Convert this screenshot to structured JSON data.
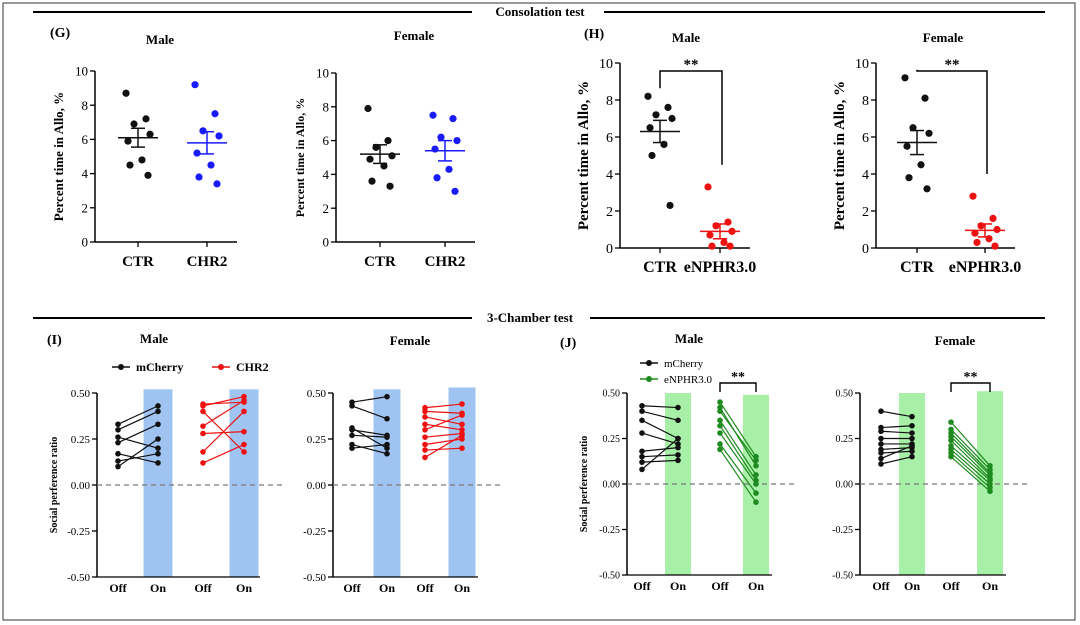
{
  "sections": {
    "consolation": "Consolation test",
    "three_chamber": "3-Chamber test"
  },
  "colors": {
    "black": "#111111",
    "blue": "#1a1aff",
    "red": "#ee1111",
    "green": "#1f8a1f",
    "light_blue": "#a0c4f2",
    "light_green": "#a8f0a8"
  },
  "chart_data": [
    {
      "id": "G-male",
      "panel_letter": "(G)",
      "type": "scatter",
      "title": "Male",
      "ylabel": "Percent time in Allo, %",
      "ylim": [
        0,
        10
      ],
      "yticks": [
        "0",
        "2",
        "4",
        "6",
        "8",
        "10"
      ],
      "categories": [
        "CTR",
        "CHR2"
      ],
      "groups": [
        {
          "category": "CTR",
          "color": "#111111",
          "mean": 6.1,
          "sem": 0.55,
          "points": [
            8.7,
            7.2,
            6.9,
            6.3,
            5.9,
            4.8,
            4.5,
            3.9
          ]
        },
        {
          "category": "CHR2",
          "color": "#1a1aff",
          "mean": 5.8,
          "sem": 0.65,
          "points": [
            9.2,
            7.5,
            6.5,
            6.2,
            5.2,
            4.5,
            3.8,
            3.4
          ]
        }
      ]
    },
    {
      "id": "G-female",
      "type": "scatter",
      "title": "Female",
      "ylabel": "Percent time in Allo, %",
      "ylim": [
        0,
        10
      ],
      "yticks": [
        "0",
        "2",
        "4",
        "6",
        "8",
        "10"
      ],
      "categories": [
        "CTR",
        "CHR2"
      ],
      "groups": [
        {
          "category": "CTR",
          "color": "#111111",
          "mean": 5.2,
          "sem": 0.55,
          "points": [
            7.9,
            6.0,
            5.6,
            5.1,
            4.9,
            4.5,
            3.6,
            3.3
          ]
        },
        {
          "category": "CHR2",
          "color": "#1a1aff",
          "mean": 5.4,
          "sem": 0.6,
          "points": [
            7.5,
            7.3,
            6.2,
            6.0,
            5.5,
            4.3,
            3.8,
            3.0
          ]
        }
      ]
    },
    {
      "id": "H-male",
      "panel_letter": "(H)",
      "type": "scatter",
      "title": "Male",
      "significance": "**",
      "ylabel": "Percent time in Allo, %",
      "ylim": [
        0,
        10
      ],
      "yticks": [
        "0",
        "2",
        "4",
        "6",
        "8",
        "10"
      ],
      "categories": [
        "CTR",
        "eNPHR3.0"
      ],
      "groups": [
        {
          "category": "CTR",
          "color": "#111111",
          "mean": 6.3,
          "sem": 0.6,
          "points": [
            8.2,
            7.6,
            7.2,
            7.0,
            6.5,
            5.6,
            5.0,
            2.3
          ]
        },
        {
          "category": "eNPHR3.0",
          "color": "#ee1111",
          "mean": 0.9,
          "sem": 0.4,
          "points": [
            3.3,
            1.4,
            1.2,
            0.9,
            0.7,
            0.3,
            0.1,
            0.1
          ]
        }
      ]
    },
    {
      "id": "H-female",
      "type": "scatter",
      "title": "Female",
      "significance": "**",
      "ylabel": "Percent time in Allo, %",
      "ylim": [
        0,
        10
      ],
      "yticks": [
        "0",
        "2",
        "4",
        "6",
        "8",
        "10"
      ],
      "categories": [
        "CTR",
        "eNPHR3.0"
      ],
      "groups": [
        {
          "category": "CTR",
          "color": "#111111",
          "mean": 5.7,
          "sem": 0.65,
          "points": [
            9.2,
            8.1,
            6.5,
            6.2,
            5.5,
            4.5,
            3.8,
            3.2
          ]
        },
        {
          "category": "eNPHR3.0",
          "color": "#ee1111",
          "mean": 0.95,
          "sem": 0.35,
          "points": [
            2.8,
            1.6,
            1.2,
            1.0,
            0.8,
            0.5,
            0.3,
            0.1
          ]
        }
      ]
    },
    {
      "id": "I-male",
      "panel_letter": "(I)",
      "type": "line",
      "title": "Male",
      "ylabel": "Social perference ratio",
      "ylim": [
        -0.5,
        0.5
      ],
      "yticks": [
        "-0.50",
        "-0.25",
        "0.00",
        "0.25",
        "0.50"
      ],
      "xticks": [
        "Off",
        "On",
        "Off",
        "On"
      ],
      "legend": [
        {
          "name": "mCherry",
          "color": "#111111"
        },
        {
          "name": "CHR2",
          "color": "#ee1111"
        }
      ],
      "bars": [
        {
          "slot": 1,
          "value": 0.52,
          "color": "#a0c4f2"
        },
        {
          "slot": 3,
          "value": 0.52,
          "color": "#a0c4f2"
        }
      ],
      "series": [
        {
          "name": "mCherry",
          "color": "#111111",
          "slots": [
            0,
            1
          ],
          "pairs": [
            [
              0.33,
              0.43
            ],
            [
              0.3,
              0.4
            ],
            [
              0.26,
              0.2
            ],
            [
              0.23,
              0.33
            ],
            [
              0.17,
              0.12
            ],
            [
              0.13,
              0.17
            ],
            [
              0.1,
              0.25
            ]
          ]
        },
        {
          "name": "CHR2",
          "color": "#ee1111",
          "slots": [
            2,
            3
          ],
          "pairs": [
            [
              0.44,
              0.45
            ],
            [
              0.43,
              0.48
            ],
            [
              0.4,
              0.18
            ],
            [
              0.32,
              0.46
            ],
            [
              0.28,
              0.29
            ],
            [
              0.18,
              0.4
            ],
            [
              0.12,
              0.22
            ]
          ]
        }
      ]
    },
    {
      "id": "I-female",
      "type": "line",
      "title": "Female",
      "ylabel": "",
      "ylim": [
        -0.5,
        0.5
      ],
      "yticks": [
        "-0.50",
        "-0.25",
        "0.00",
        "0.25",
        "0.50"
      ],
      "xticks": [
        "Off",
        "On",
        "Off",
        "On"
      ],
      "bars": [
        {
          "slot": 1,
          "value": 0.52,
          "color": "#a0c4f2"
        },
        {
          "slot": 3,
          "value": 0.53,
          "color": "#a0c4f2"
        }
      ],
      "series": [
        {
          "name": "mCherry",
          "color": "#111111",
          "slots": [
            0,
            1
          ],
          "pairs": [
            [
              0.45,
              0.48
            ],
            [
              0.43,
              0.36
            ],
            [
              0.31,
              0.2
            ],
            [
              0.3,
              0.27
            ],
            [
              0.27,
              0.26
            ],
            [
              0.22,
              0.17
            ],
            [
              0.2,
              0.22
            ]
          ]
        },
        {
          "name": "CHR2",
          "color": "#ee1111",
          "slots": [
            2,
            3
          ],
          "pairs": [
            [
              0.42,
              0.44
            ],
            [
              0.4,
              0.39
            ],
            [
              0.37,
              0.33
            ],
            [
              0.33,
              0.3
            ],
            [
              0.3,
              0.38
            ],
            [
              0.26,
              0.28
            ],
            [
              0.22,
              0.25
            ],
            [
              0.19,
              0.2
            ],
            [
              0.15,
              0.27
            ]
          ]
        }
      ]
    },
    {
      "id": "J-male",
      "panel_letter": "(J)",
      "type": "line",
      "title": "Male",
      "significance": "**",
      "ylabel": "Social perference ratio",
      "ylim": [
        -0.5,
        0.5
      ],
      "yticks": [
        "-0.50",
        "-0.25",
        "0.00",
        "0.25",
        "0.50"
      ],
      "xticks": [
        "Off",
        "On",
        "Off",
        "On"
      ],
      "legend": [
        {
          "name": "mCherry",
          "color": "#111111"
        },
        {
          "name": "eNPHR3.0",
          "color": "#1f8a1f"
        }
      ],
      "bars": [
        {
          "slot": 1,
          "value": 0.5,
          "color": "#a8f0a8"
        },
        {
          "slot": 3,
          "value": 0.49,
          "color": "#a8f0a8"
        }
      ],
      "series": [
        {
          "name": "mCherry",
          "color": "#111111",
          "slots": [
            0,
            1
          ],
          "pairs": [
            [
              0.43,
              0.42
            ],
            [
              0.4,
              0.35
            ],
            [
              0.35,
              0.25
            ],
            [
              0.28,
              0.22
            ],
            [
              0.18,
              0.2
            ],
            [
              0.15,
              0.16
            ],
            [
              0.12,
              0.13
            ],
            [
              0.08,
              0.25
            ]
          ]
        },
        {
          "name": "eNPHR3.0",
          "color": "#1f8a1f",
          "slots": [
            2,
            3
          ],
          "pairs": [
            [
              0.45,
              0.15
            ],
            [
              0.42,
              0.1
            ],
            [
              0.4,
              0.13
            ],
            [
              0.35,
              0.05
            ],
            [
              0.32,
              0.02
            ],
            [
              0.28,
              0.0
            ],
            [
              0.22,
              -0.05
            ],
            [
              0.19,
              -0.1
            ]
          ]
        }
      ]
    },
    {
      "id": "J-female",
      "type": "line",
      "title": "Female",
      "significance": "**",
      "ylabel": "",
      "ylim": [
        -0.5,
        0.5
      ],
      "yticks": [
        "-0.50",
        "-0.25",
        "0.00",
        "0.25",
        "0.50"
      ],
      "xticks": [
        "Off",
        "On",
        "Off",
        "On"
      ],
      "bars": [
        {
          "slot": 1,
          "value": 0.5,
          "color": "#a8f0a8"
        },
        {
          "slot": 3,
          "value": 0.51,
          "color": "#a8f0a8"
        }
      ],
      "series": [
        {
          "name": "mCherry",
          "color": "#111111",
          "slots": [
            0,
            1
          ],
          "pairs": [
            [
              0.4,
              0.37
            ],
            [
              0.31,
              0.32
            ],
            [
              0.29,
              0.28
            ],
            [
              0.25,
              0.25
            ],
            [
              0.22,
              0.22
            ],
            [
              0.19,
              0.2
            ],
            [
              0.17,
              0.18
            ],
            [
              0.14,
              0.21
            ],
            [
              0.11,
              0.15
            ]
          ]
        },
        {
          "name": "eNPHR3.0",
          "color": "#1f8a1f",
          "slots": [
            2,
            3
          ],
          "pairs": [
            [
              0.34,
              0.1
            ],
            [
              0.3,
              0.08
            ],
            [
              0.28,
              0.06
            ],
            [
              0.26,
              0.05
            ],
            [
              0.24,
              0.03
            ],
            [
              0.21,
              0.02
            ],
            [
              0.19,
              0.0
            ],
            [
              0.17,
              -0.02
            ],
            [
              0.15,
              -0.04
            ]
          ]
        }
      ]
    }
  ]
}
